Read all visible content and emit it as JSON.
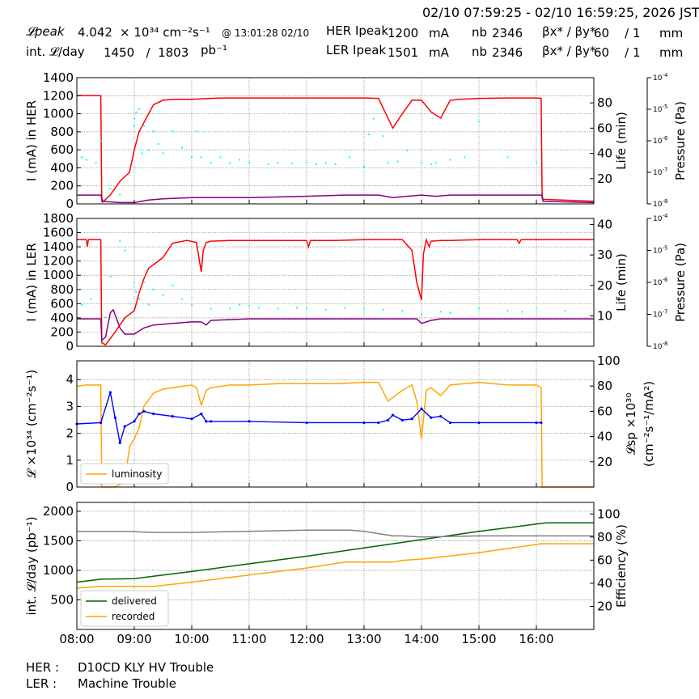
{
  "header": {
    "time_range": "02/10 07:59:25 - 02/10 16:59:25, 2026 JST",
    "lpeak_label": "𝓛peak",
    "lpeak_value": "4.042",
    "lpeak_units": "× 10³⁴ cm⁻²s⁻¹",
    "lpeak_time": "@ 13:01:28 02/10",
    "intl_label": "int. 𝓛/day",
    "intl_value": "1450   /  1803",
    "intl_units": "pb⁻¹",
    "her_label": "HER Ipeak",
    "her_value": "1200",
    "ler_label": "LER Ipeak",
    "ler_value": "1501",
    "current_unit": "mA",
    "nb_label": "nb",
    "her_nb": "2346",
    "ler_nb": "2346",
    "beta_label": "βx* / βy*",
    "her_beta": "60    / 1",
    "ler_beta": "60    / 1",
    "beta_unit": "mm"
  },
  "footer": [
    {
      "ring": "HER :",
      "status": "D10CD KLY HV Trouble"
    },
    {
      "ring": "LER :",
      "status": "Machine Trouble"
    }
  ],
  "colors": {
    "current": "#ff0000",
    "life": "#800080",
    "pressure": "#00ffff",
    "luminosity": "#ffa500",
    "specific": "#0000ff",
    "delivered": "#006400",
    "recorded": "#ffa500",
    "efficiency": "#808080"
  },
  "chart_data": [
    {
      "type": "line",
      "ylabel": "I (mA) in HER",
      "y2label": "Life (min)",
      "y3label": "Pressure (Pa)",
      "xlim": [
        "08:00",
        "17:00"
      ],
      "ylim": [
        0,
        1400
      ],
      "y2lim": [
        0,
        100
      ],
      "y3lim": [
        1e-08,
        0.0001
      ],
      "yticks": [
        0,
        200,
        400,
        600,
        800,
        1000,
        1200,
        1400
      ],
      "y2ticks": [
        20,
        40,
        60,
        80
      ],
      "y3ticks": [
        1e-08,
        1e-07,
        1e-06,
        1e-05,
        0.0001
      ],
      "series": [
        {
          "role": "current",
          "axis": "left",
          "x": [
            "08:00",
            "08:25",
            "08:26",
            "08:27",
            "08:35",
            "08:45",
            "08:55",
            "09:00",
            "09:05",
            "09:10",
            "09:20",
            "09:30",
            "09:40",
            "10:00",
            "10:30",
            "11:00",
            "11:30",
            "12:00",
            "12:30",
            "13:00",
            "13:15",
            "13:30",
            "13:40",
            "13:50",
            "14:00",
            "14:10",
            "14:20",
            "14:30",
            "14:40",
            "15:00",
            "15:30",
            "16:00",
            "16:05",
            "16:06",
            "16:07",
            "17:00"
          ],
          "y": [
            1200,
            1200,
            30,
            20,
            100,
            250,
            350,
            600,
            800,
            900,
            1100,
            1150,
            1160,
            1160,
            1175,
            1175,
            1175,
            1175,
            1175,
            1175,
            1170,
            840,
            1000,
            1150,
            1150,
            1020,
            950,
            1150,
            1160,
            1170,
            1175,
            1175,
            1170,
            60,
            50,
            30
          ]
        },
        {
          "role": "life",
          "axis": "right",
          "x": [
            "08:00",
            "08:25",
            "08:27",
            "08:45",
            "09:00",
            "09:15",
            "09:30",
            "10:00",
            "11:00",
            "12:00",
            "12:40",
            "13:00",
            "13:15",
            "13:30",
            "13:45",
            "14:00",
            "14:15",
            "14:30",
            "15:00",
            "16:00",
            "16:06",
            "16:07",
            "17:00"
          ],
          "y": [
            7,
            7,
            2,
            1,
            1,
            3,
            4,
            5,
            5,
            6,
            7,
            7,
            7,
            5,
            6,
            7,
            6,
            7,
            7,
            7,
            7,
            2,
            1
          ]
        },
        {
          "role": "pressure",
          "axis": "log",
          "x": [
            "08:05",
            "08:10",
            "08:20",
            "08:25",
            "08:35",
            "08:45",
            "09:00",
            "09:00",
            "09:02",
            "09:05",
            "09:08",
            "09:10",
            "09:15",
            "09:20",
            "09:25",
            "09:30",
            "09:40",
            "09:50",
            "10:00",
            "10:05",
            "10:10",
            "10:20",
            "10:30",
            "10:40",
            "10:50",
            "11:00",
            "11:20",
            "11:30",
            "11:45",
            "12:00",
            "12:10",
            "12:20",
            "12:30",
            "12:45",
            "13:00",
            "13:05",
            "13:10",
            "13:20",
            "13:25",
            "13:35",
            "13:45",
            "14:00",
            "14:10",
            "14:15",
            "14:30",
            "14:45",
            "15:00",
            "15:30",
            "16:00"
          ],
          "y": [
            3e-07,
            2.5e-07,
            2e-07,
            1e-06,
            3e-08,
            2e-08,
            3e-06,
            5e-06,
            8e-06,
            1e-05,
            4e-07,
            3e-06,
            5e-07,
            2e-06,
            8e-07,
            4e-07,
            2e-06,
            6e-07,
            3e-07,
            2e-06,
            3e-07,
            2e-07,
            3e-07,
            2e-07,
            2.5e-07,
            2e-07,
            1.8e-07,
            2e-07,
            1.9e-07,
            2e-07,
            1.8e-07,
            2e-07,
            1.8e-07,
            3e-07,
            1.5e-07,
            1.6e-06,
            5e-06,
            1.4e-06,
            2e-07,
            2.2e-07,
            5e-07,
            2e-07,
            1.8e-07,
            2e-07,
            2.5e-07,
            3e-07,
            4e-06,
            3e-07,
            2e-07
          ]
        }
      ]
    },
    {
      "type": "line",
      "ylabel": "I (mA) in LER",
      "y2label": "Life (min)",
      "y3label": "Pressure (Pa)",
      "xlim": [
        "08:00",
        "17:00"
      ],
      "ylim": [
        0,
        1800
      ],
      "y2lim": [
        0,
        42
      ],
      "y3lim": [
        1e-08,
        0.0001
      ],
      "yticks": [
        0,
        200,
        400,
        600,
        800,
        1000,
        1200,
        1400,
        1600,
        1800
      ],
      "y2ticks": [
        10,
        20,
        30,
        40
      ],
      "y3ticks": [
        1e-08,
        1e-07,
        1e-06,
        1e-05,
        0.0001
      ],
      "series": [
        {
          "role": "current",
          "axis": "left",
          "x": [
            "08:00",
            "08:10",
            "08:11",
            "08:12",
            "08:25",
            "08:26",
            "08:30",
            "08:40",
            "08:50",
            "09:00",
            "09:05",
            "09:10",
            "09:15",
            "09:20",
            "09:30",
            "09:40",
            "09:55",
            "10:05",
            "10:08",
            "10:10",
            "10:12",
            "10:15",
            "10:20",
            "10:40",
            "11:00",
            "11:30",
            "12:00",
            "12:02",
            "12:04",
            "12:30",
            "13:00",
            "13:30",
            "13:40",
            "13:50",
            "13:55",
            "14:00",
            "14:02",
            "14:05",
            "14:08",
            "14:10",
            "14:20",
            "14:30",
            "15:00",
            "15:40",
            "15:42",
            "15:44",
            "16:00",
            "16:30",
            "17:00"
          ],
          "y": [
            1500,
            1500,
            1400,
            1500,
            1500,
            50,
            20,
            200,
            400,
            500,
            750,
            950,
            1100,
            1150,
            1250,
            1450,
            1490,
            1460,
            1200,
            1050,
            1350,
            1460,
            1480,
            1490,
            1490,
            1490,
            1490,
            1400,
            1490,
            1490,
            1500,
            1500,
            1500,
            1350,
            900,
            650,
            1300,
            1500,
            1400,
            1480,
            1490,
            1490,
            1500,
            1500,
            1450,
            1500,
            1500,
            1500,
            1500
          ]
        },
        {
          "role": "life",
          "axis": "right",
          "x": [
            "08:00",
            "08:25",
            "08:26",
            "08:30",
            "08:35",
            "08:38",
            "08:45",
            "08:50",
            "09:00",
            "09:10",
            "09:20",
            "09:40",
            "10:00",
            "10:10",
            "10:15",
            "10:20",
            "11:00",
            "12:00",
            "13:00",
            "13:30",
            "13:45",
            "13:55",
            "14:00",
            "14:10",
            "14:20",
            "15:00",
            "16:00",
            "17:00"
          ],
          "y": [
            9,
            9,
            2,
            3,
            11,
            12,
            6,
            4,
            4,
            6,
            7,
            7.5,
            8,
            8,
            7,
            8.5,
            9,
            9,
            9,
            9,
            9,
            9,
            7.5,
            8.5,
            9,
            9,
            9,
            9
          ]
        },
        {
          "role": "pressure",
          "axis": "log",
          "x": [
            "08:05",
            "08:15",
            "08:30",
            "08:35",
            "08:45",
            "08:50",
            "09:00",
            "09:02",
            "09:05",
            "09:10",
            "09:15",
            "09:20",
            "09:30",
            "09:40",
            "09:50",
            "10:00",
            "10:20",
            "10:40",
            "10:50",
            "11:00",
            "11:10",
            "11:30",
            "11:50",
            "12:00",
            "12:20",
            "12:40",
            "13:00",
            "13:20",
            "13:40",
            "14:00",
            "14:20",
            "14:30",
            "15:00",
            "15:30",
            "15:45",
            "16:00",
            "16:30"
          ],
          "y": [
            2e-07,
            3e-07,
            8e-08,
            1.5e-06,
            2e-05,
            1e-05,
            1e-06,
            5e-07,
            3e-07,
            1e-06,
            2e-07,
            6e-07,
            4e-07,
            8e-07,
            3e-07,
            2e-07,
            1.5e-07,
            1.5e-07,
            2e-07,
            1.8e-07,
            1.6e-07,
            1.5e-07,
            1.6e-07,
            1.5e-07,
            1.4e-07,
            1.6e-07,
            1.5e-07,
            1.4e-07,
            1.3e-07,
            1e-07,
            1.2e-07,
            1.1e-07,
            1.5e-07,
            1.3e-07,
            1.2e-07,
            1.5e-07,
            1.3e-07
          ]
        }
      ]
    },
    {
      "type": "line",
      "ylabel": "𝓛 ×10³⁴ (cm⁻²s⁻¹)",
      "y2label": "𝓛sp ×10³⁰ (cm⁻²s⁻¹/mA²)",
      "xlim": [
        "08:00",
        "17:00"
      ],
      "ylim": [
        0,
        4.7
      ],
      "y2lim": [
        0,
        100
      ],
      "yticks": [
        0,
        1,
        2,
        3,
        4
      ],
      "y2ticks": [
        20,
        40,
        60,
        80,
        100
      ],
      "legend": "lower-left",
      "series": [
        {
          "role": "luminosity",
          "name": "luminosity",
          "axis": "left",
          "x": [
            "08:00",
            "08:10",
            "08:25",
            "08:26",
            "08:40",
            "08:50",
            "08:55",
            "09:00",
            "09:05",
            "09:10",
            "09:20",
            "09:30",
            "09:40",
            "10:00",
            "10:05",
            "10:10",
            "10:15",
            "10:20",
            "10:40",
            "11:00",
            "11:30",
            "12:00",
            "12:30",
            "13:00",
            "13:15",
            "13:25",
            "13:40",
            "13:50",
            "13:55",
            "14:00",
            "14:05",
            "14:10",
            "14:20",
            "14:30",
            "15:00",
            "15:30",
            "16:00",
            "16:05",
            "16:06",
            "17:00"
          ],
          "y": [
            3.75,
            3.8,
            3.8,
            0,
            0,
            0.2,
            1.5,
            1.8,
            2.2,
            3.0,
            3.5,
            3.65,
            3.7,
            3.8,
            3.7,
            3.05,
            3.6,
            3.7,
            3.8,
            3.8,
            3.85,
            3.85,
            3.85,
            3.9,
            3.9,
            3.2,
            3.6,
            3.8,
            3.2,
            1.8,
            3.6,
            3.7,
            3.4,
            3.8,
            3.9,
            3.8,
            3.8,
            3.7,
            0,
            0
          ]
        },
        {
          "role": "specific",
          "axis": "right",
          "x": [
            "08:00",
            "08:25",
            "08:35",
            "08:40",
            "08:45",
            "08:50",
            "09:00",
            "09:05",
            "09:10",
            "09:20",
            "09:40",
            "10:00",
            "10:10",
            "10:15",
            "10:20",
            "11:00",
            "12:00",
            "13:00",
            "13:15",
            "13:25",
            "13:30",
            "13:40",
            "13:50",
            "14:00",
            "14:10",
            "14:20",
            "14:30",
            "15:00",
            "16:00",
            "16:05"
          ],
          "y": [
            50,
            51,
            75,
            55,
            35,
            48,
            52,
            58,
            60,
            58,
            56,
            54,
            58,
            52,
            52,
            52,
            51,
            51,
            51,
            53,
            57,
            53,
            54,
            62,
            55,
            56,
            51,
            51,
            51,
            51
          ]
        }
      ]
    },
    {
      "type": "line",
      "ylabel": "int. 𝓛/day (pb⁻¹)",
      "y2label": "Efficiency (%)",
      "xlim": [
        "08:00",
        "17:00"
      ],
      "ylim": [
        0,
        2150
      ],
      "y2lim": [
        0,
        110
      ],
      "yticks": [
        500,
        1000,
        1500,
        2000
      ],
      "y2ticks": [
        20,
        40,
        60,
        80,
        100
      ],
      "xticks": [
        "08:00",
        "09:00",
        "10:00",
        "11:00",
        "12:00",
        "13:00",
        "14:00",
        "15:00",
        "16:00"
      ],
      "legend": "lower-left",
      "series": [
        {
          "role": "delivered",
          "name": "delivered",
          "axis": "left",
          "x": [
            "08:00",
            "08:25",
            "09:00",
            "09:20",
            "10:00",
            "11:00",
            "12:00",
            "13:00",
            "14:00",
            "15:00",
            "16:10",
            "17:00"
          ],
          "y": [
            800,
            850,
            860,
            900,
            980,
            1110,
            1240,
            1380,
            1520,
            1660,
            1803,
            1803
          ]
        },
        {
          "role": "recorded",
          "name": "recorded",
          "axis": "left",
          "x": [
            "08:00",
            "08:25",
            "09:20",
            "10:00",
            "11:00",
            "12:00",
            "12:40",
            "13:30",
            "13:40",
            "14:00",
            "15:00",
            "16:05",
            "17:00"
          ],
          "y": [
            700,
            730,
            730,
            800,
            920,
            1040,
            1140,
            1140,
            1170,
            1190,
            1300,
            1450,
            1450
          ]
        },
        {
          "role": "efficiency",
          "axis": "right",
          "x": [
            "08:00",
            "08:50",
            "09:20",
            "10:00",
            "11:00",
            "12:00",
            "12:45",
            "13:00",
            "13:30",
            "13:40",
            "14:00",
            "15:00",
            "16:00",
            "17:00"
          ],
          "y": [
            85,
            85,
            84,
            84,
            85,
            86,
            86,
            85,
            81,
            81,
            80,
            81,
            81,
            81
          ]
        }
      ]
    }
  ]
}
